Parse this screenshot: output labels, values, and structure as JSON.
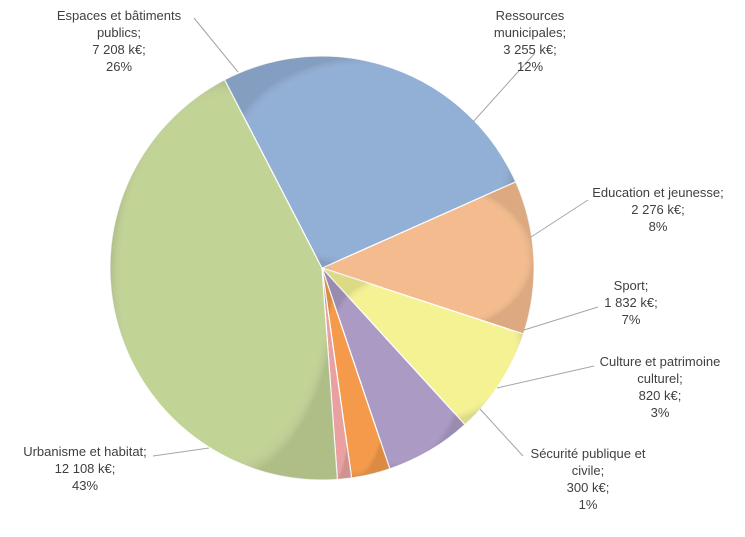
{
  "chart_data": {
    "type": "pie",
    "unit": "k€",
    "start_angle_deg": 66,
    "direction": "clockwise",
    "grid": false,
    "legend": "none",
    "slices": [
      {
        "name": "Ressources municipales",
        "value": 3255,
        "value_label": "3 255 k€;",
        "percent_label": "12%",
        "color": "#F4BC8E",
        "label_lines": [
          "Ressources",
          "municipales;",
          "3 255 k€;",
          "12%"
        ]
      },
      {
        "name": "Education et jeunesse",
        "value": 2276,
        "value_label": "2 276 k€;",
        "percent_label": "8%",
        "color": "#F5F294",
        "label_lines": [
          "Education et jeunesse;",
          "2 276 k€;",
          "8%"
        ]
      },
      {
        "name": "Sport",
        "value": 1832,
        "value_label": "1 832 k€;",
        "percent_label": "7%",
        "color": "#AB9AC4",
        "label_lines": [
          "Sport;",
          "1 832 k€;",
          "7%"
        ]
      },
      {
        "name": "Culture et patrimoine culturel",
        "value": 820,
        "value_label": "820 k€;",
        "percent_label": "3%",
        "color": "#F59A4A",
        "label_lines": [
          "Culture et patrimoine",
          "culturel;",
          "820 k€;",
          "3%"
        ]
      },
      {
        "name": "Sécurité publique et civile",
        "value": 300,
        "value_label": "300 k€;",
        "percent_label": "1%",
        "color": "#E8A1A0",
        "label_lines": [
          "Sécurité publique et",
          "civile;",
          "300 k€;",
          "1%"
        ]
      },
      {
        "name": "Urbanisme et habitat",
        "value": 12108,
        "value_label": "12 108 k€;",
        "percent_label": "43%",
        "color": "#C2D396",
        "label_lines": [
          "Urbanisme et habitat;",
          "12 108 k€;",
          "43%"
        ]
      },
      {
        "name": "Espaces et bâtiments publics",
        "value": 7208,
        "value_label": "7 208 k€;",
        "percent_label": "26%",
        "color": "#92AFD5",
        "label_lines": [
          "Espaces et bâtiments",
          "publics;",
          "7 208 k€;",
          "26%"
        ]
      }
    ]
  }
}
